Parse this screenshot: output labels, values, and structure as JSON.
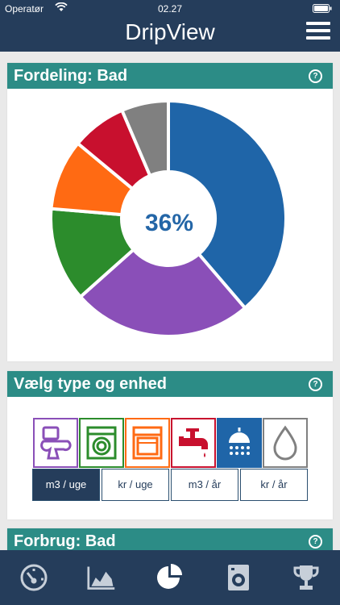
{
  "status_bar": {
    "carrier": "Operatør",
    "time": "02.27"
  },
  "app": {
    "title": "DripView"
  },
  "distribution_card": {
    "title": "Fordeling: Bad",
    "center_label": "36%",
    "chart_data": {
      "type": "pie",
      "segments": [
        {
          "value": 36,
          "color": "#1f65a8"
        },
        {
          "value": 23,
          "color": "#8a4fb8"
        },
        {
          "value": 12,
          "color": "#2c8c2c"
        },
        {
          "value": 9,
          "color": "#ff6a13"
        },
        {
          "value": 7,
          "color": "#c8102e"
        },
        {
          "value": 6,
          "color": "#808080"
        }
      ]
    }
  },
  "type_card": {
    "title": "Vælg type og enhed",
    "types": [
      {
        "icon": "toilet-icon",
        "color": "#8a4fb8",
        "active": false
      },
      {
        "icon": "washing-machine-icon",
        "color": "#2c8c2c",
        "active": false
      },
      {
        "icon": "dishwasher-icon",
        "color": "#ff6a13",
        "active": false
      },
      {
        "icon": "faucet-icon",
        "color": "#c8102e",
        "active": false
      },
      {
        "icon": "shower-icon",
        "color": "#1f65a8",
        "active": true
      },
      {
        "icon": "water-drop-icon",
        "color": "#808080",
        "active": false
      }
    ],
    "units": [
      {
        "label": "m3 / uge",
        "active": true
      },
      {
        "label": "kr / uge",
        "active": false
      },
      {
        "label": "m3 / år",
        "active": false
      },
      {
        "label": "kr / år",
        "active": false
      }
    ]
  },
  "consumption_card": {
    "title": "Forbrug: Bad"
  },
  "tab_bar": {
    "tabs": [
      {
        "icon": "gauge-icon",
        "active": false
      },
      {
        "icon": "area-chart-icon",
        "active": false
      },
      {
        "icon": "pie-chart-icon",
        "active": true
      },
      {
        "icon": "washing-machine-icon",
        "active": false
      },
      {
        "icon": "trophy-icon",
        "active": false
      }
    ]
  }
}
